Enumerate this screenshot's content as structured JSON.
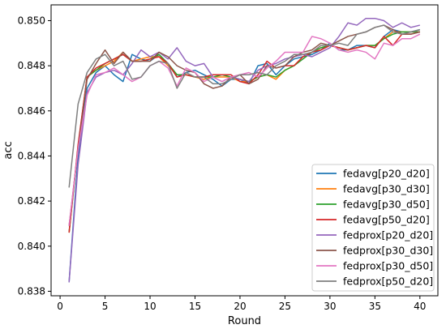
{
  "chart_data": {
    "type": "line",
    "title": "",
    "xlabel": "Round",
    "ylabel": "acc",
    "xlim": [
      -1,
      42
    ],
    "ylim": [
      0.8378,
      0.8507
    ],
    "xticks": [
      0,
      5,
      10,
      15,
      20,
      25,
      30,
      35,
      40
    ],
    "xtick_labels": [
      "0",
      "5",
      "10",
      "15",
      "20",
      "25",
      "30",
      "35",
      "40"
    ],
    "yticks": [
      0.838,
      0.84,
      0.842,
      0.844,
      0.846,
      0.848,
      0.85
    ],
    "ytick_labels": [
      "0.838",
      "0.840",
      "0.842",
      "0.844",
      "0.846",
      "0.848",
      "0.850"
    ],
    "grid": false,
    "legend_position": "lower-right",
    "x": [
      1,
      2,
      3,
      4,
      5,
      6,
      7,
      8,
      9,
      10,
      11,
      12,
      13,
      14,
      15,
      16,
      17,
      18,
      19,
      20,
      21,
      22,
      23,
      24,
      25,
      26,
      27,
      28,
      29,
      30,
      31,
      32,
      33,
      34,
      35,
      36,
      37,
      38,
      39,
      40
    ],
    "series": [
      {
        "name": "fedavg[p20_d20]",
        "color": "#1f77b4",
        "values": [
          0.8384,
          0.844,
          0.847,
          0.8477,
          0.848,
          0.8476,
          0.8473,
          0.8485,
          0.8483,
          0.8482,
          0.8485,
          0.8481,
          0.8475,
          0.8477,
          0.8478,
          0.8476,
          0.8474,
          0.8471,
          0.8474,
          0.8474,
          0.8472,
          0.848,
          0.8481,
          0.8476,
          0.848,
          0.8483,
          0.8484,
          0.8485,
          0.8487,
          0.849,
          0.8487,
          0.8487,
          0.8489,
          0.8489,
          0.8488,
          0.8493,
          0.8496,
          0.8495,
          0.8495,
          0.8496
        ]
      },
      {
        "name": "fedavg[p30_d30]",
        "color": "#ff7f0e",
        "values": [
          0.8406,
          0.8444,
          0.8475,
          0.8478,
          0.848,
          0.8482,
          0.8486,
          0.8482,
          0.8483,
          0.8484,
          0.8484,
          0.848,
          0.8476,
          0.8476,
          0.8475,
          0.8474,
          0.8475,
          0.8475,
          0.8475,
          0.8473,
          0.8473,
          0.8475,
          0.8476,
          0.8474,
          0.8478,
          0.848,
          0.8484,
          0.8486,
          0.8488,
          0.8489,
          0.8488,
          0.8487,
          0.8488,
          0.8489,
          0.8489,
          0.8492,
          0.8495,
          0.8495,
          0.8495,
          0.8495
        ]
      },
      {
        "name": "fedavg[p30_d50]",
        "color": "#2ca02c",
        "values": [
          0.8406,
          0.8444,
          0.8475,
          0.8478,
          0.8481,
          0.8483,
          0.8485,
          0.8482,
          0.8482,
          0.8483,
          0.8485,
          0.8481,
          0.8476,
          0.8476,
          0.8475,
          0.8475,
          0.8475,
          0.8476,
          0.8475,
          0.8474,
          0.8473,
          0.8475,
          0.8476,
          0.8475,
          0.8478,
          0.848,
          0.8483,
          0.8486,
          0.8488,
          0.8489,
          0.8488,
          0.8487,
          0.8488,
          0.8489,
          0.8489,
          0.8492,
          0.8494,
          0.8495,
          0.8495,
          0.8495
        ]
      },
      {
        "name": "fedavg[p50_d20]",
        "color": "#d62728",
        "values": [
          0.8406,
          0.8445,
          0.8475,
          0.8479,
          0.8481,
          0.8483,
          0.8485,
          0.8482,
          0.8482,
          0.8483,
          0.8484,
          0.8481,
          0.8475,
          0.8476,
          0.8475,
          0.8475,
          0.8476,
          0.8476,
          0.8476,
          0.8473,
          0.8472,
          0.8476,
          0.8482,
          0.8479,
          0.848,
          0.848,
          0.8484,
          0.8486,
          0.8487,
          0.8489,
          0.8488,
          0.8487,
          0.8488,
          0.8489,
          0.8488,
          0.8493,
          0.8489,
          0.8494,
          0.8494,
          0.8495
        ]
      },
      {
        "name": "fedprox[p20_d20]",
        "color": "#9467bd",
        "values": [
          0.8384,
          0.8436,
          0.8468,
          0.8475,
          0.8477,
          0.8478,
          0.8476,
          0.8481,
          0.8487,
          0.8484,
          0.8486,
          0.8483,
          0.8488,
          0.8482,
          0.848,
          0.8481,
          0.8475,
          0.8473,
          0.8475,
          0.8474,
          0.8473,
          0.8478,
          0.848,
          0.8481,
          0.8483,
          0.8484,
          0.8485,
          0.8484,
          0.8486,
          0.8488,
          0.8493,
          0.8499,
          0.8498,
          0.8501,
          0.8501,
          0.85,
          0.8497,
          0.8499,
          0.8497,
          0.8498
        ]
      },
      {
        "name": "fedprox[p30_d30]",
        "color": "#8c564b",
        "values": [
          0.8409,
          0.8443,
          0.8474,
          0.8481,
          0.8487,
          0.8481,
          0.8486,
          0.8482,
          0.8482,
          0.8482,
          0.8486,
          0.8484,
          0.848,
          0.8478,
          0.8477,
          0.8472,
          0.847,
          0.8471,
          0.8475,
          0.8476,
          0.8472,
          0.8474,
          0.848,
          0.8479,
          0.848,
          0.8484,
          0.8486,
          0.8487,
          0.849,
          0.8489,
          0.8491,
          0.8493,
          0.8494,
          0.8495,
          0.8497,
          0.8498,
          0.8496,
          0.8494,
          0.8494,
          0.8495
        ]
      },
      {
        "name": "fedprox[p30_d50]",
        "color": "#e377c2",
        "values": [
          0.8409,
          0.8443,
          0.8467,
          0.8476,
          0.8477,
          0.8479,
          0.8476,
          0.8473,
          0.8475,
          0.848,
          0.8482,
          0.8479,
          0.8471,
          0.8479,
          0.8477,
          0.8473,
          0.8475,
          0.8473,
          0.8475,
          0.8476,
          0.8477,
          0.8475,
          0.8479,
          0.8482,
          0.8486,
          0.8486,
          0.8486,
          0.8493,
          0.8492,
          0.849,
          0.8487,
          0.8486,
          0.8487,
          0.8486,
          0.8483,
          0.849,
          0.8489,
          0.8492,
          0.8492,
          0.8494
        ]
      },
      {
        "name": "fedprox[p50_d20]",
        "color": "#7f7f7f",
        "values": [
          0.8426,
          0.8463,
          0.8477,
          0.8483,
          0.8485,
          0.848,
          0.8482,
          0.8474,
          0.8475,
          0.848,
          0.8482,
          0.8481,
          0.847,
          0.8477,
          0.8475,
          0.8475,
          0.8472,
          0.8472,
          0.8474,
          0.8476,
          0.8476,
          0.8477,
          0.8476,
          0.848,
          0.8482,
          0.8485,
          0.8485,
          0.8486,
          0.8489,
          0.8489,
          0.849,
          0.8489,
          0.8494,
          0.8495,
          0.8497,
          0.8498,
          0.8495,
          0.8494,
          0.8495,
          0.8496
        ]
      }
    ]
  }
}
